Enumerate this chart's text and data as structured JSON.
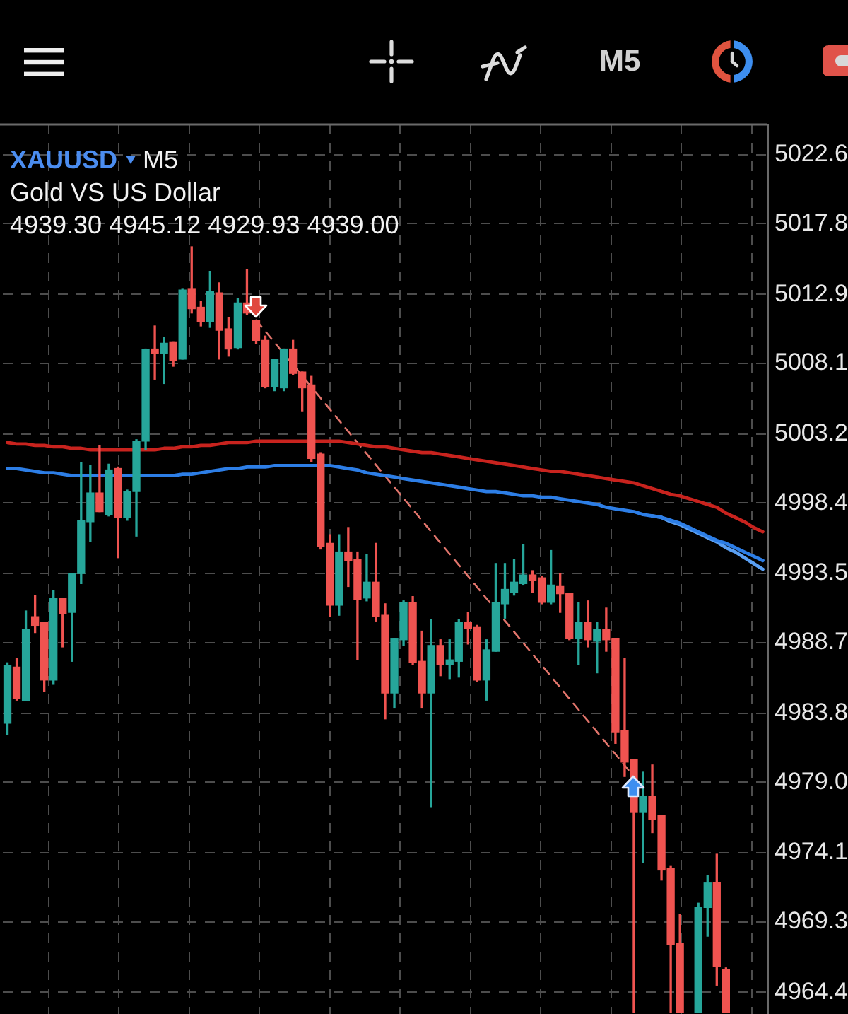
{
  "chart_data": {
    "type": "candlestick",
    "title": "XAUUSD",
    "subtitle": "Gold VS US Dollar",
    "annotations": [
      "M5",
      "4939.30 4945.12 4929.93 4939.00",
      "M5"
    ],
    "categories": [
      null,
      null,
      null,
      null,
      null,
      null,
      null,
      null,
      null,
      null,
      null,
      null,
      null,
      null,
      null,
      null,
      null,
      null,
      null,
      null,
      null,
      null,
      null,
      null,
      null,
      null,
      null,
      null,
      null,
      null,
      null,
      null,
      null,
      null,
      null,
      null,
      null,
      null,
      null,
      null,
      null,
      null,
      null,
      null,
      null,
      null,
      null,
      null,
      null,
      null,
      null,
      null,
      null,
      null,
      null,
      null,
      null,
      null,
      null,
      null,
      null,
      null,
      null,
      null,
      null,
      null,
      null,
      null,
      null,
      null,
      null,
      null,
      null,
      null,
      null,
      null,
      null,
      null,
      null,
      null,
      null,
      null,
      null
    ],
    "ohlc": [
      [
        4983.1,
        4987.3,
        4982.3,
        4987.1
      ],
      [
        4987.0,
        4987.6,
        4984.7,
        4984.8
      ],
      [
        4984.7,
        4990.9,
        4984.7,
        4989.6
      ],
      [
        4990.5,
        4992.0,
        4989.4,
        4989.9
      ],
      [
        4990.1,
        4990.1,
        4985.3,
        4986.1
      ],
      [
        4986.1,
        4992.3,
        4985.8,
        4991.8
      ],
      [
        4991.8,
        4991.8,
        4988.4,
        4990.7
      ],
      [
        4990.8,
        4993.5,
        4987.4,
        4993.5
      ],
      [
        4993.5,
        5001.2,
        4992.8,
        4997.2
      ],
      [
        4997.1,
        5001.0,
        4995.7,
        4999.1
      ],
      [
        4999.1,
        5002.4,
        4997.8,
        4997.8
      ],
      [
        4997.6,
        5001.1,
        4997.5,
        5000.7
      ],
      [
        5000.8,
        5000.9,
        4994.6,
        4997.4
      ],
      [
        4997.4,
        4999.3,
        4997.2,
        4999.2
      ],
      [
        4999.2,
        5002.8,
        4996.1,
        5002.7
      ],
      [
        5002.7,
        5009.1,
        5002.1,
        5009.1
      ],
      [
        5009.1,
        5010.7,
        5007.0,
        5008.8
      ],
      [
        5008.8,
        5009.9,
        5006.7,
        5009.5
      ],
      [
        5009.6,
        5009.6,
        5007.9,
        5008.3
      ],
      [
        5008.4,
        5013.3,
        5008.4,
        5013.2
      ],
      [
        5013.3,
        5016.2,
        5011.6,
        5011.9
      ],
      [
        5012.0,
        5012.4,
        5010.7,
        5011.0
      ],
      [
        5011.0,
        5014.5,
        5010.6,
        5013.1
      ],
      [
        5013.0,
        5013.7,
        5008.4,
        5010.4
      ],
      [
        5010.5,
        5011.3,
        5008.6,
        5009.1
      ],
      [
        5009.2,
        5012.6,
        5009.1,
        5012.3
      ],
      [
        5012.3,
        5014.6,
        5011.5,
        5011.6
      ],
      [
        5011.1,
        5011.1,
        5009.5,
        5009.7
      ],
      [
        5009.7,
        5010.0,
        5006.4,
        5006.5
      ],
      [
        5006.5,
        5008.4,
        5006.2,
        5008.4
      ],
      [
        5006.4,
        5009.1,
        5006.2,
        5009.1
      ],
      [
        5009.1,
        5009.7,
        5007.3,
        5007.4
      ],
      [
        5007.5,
        5007.5,
        5004.8,
        5006.4
      ],
      [
        5006.6,
        5007.2,
        5001.3,
        5001.5
      ],
      [
        5001.8,
        5001.9,
        4995.2,
        4995.4
      ],
      [
        4995.6,
        4996.2,
        4990.5,
        4991.3
      ],
      [
        4991.3,
        4996.2,
        4990.6,
        4995.0
      ],
      [
        4995.0,
        4996.7,
        4992.6,
        4994.4
      ],
      [
        4994.5,
        4995.0,
        4987.5,
        4991.7
      ],
      [
        4991.8,
        4994.8,
        4991.6,
        4992.9
      ],
      [
        4992.9,
        4995.6,
        4990.2,
        4990.5
      ],
      [
        4990.6,
        4991.4,
        4983.4,
        4985.2
      ],
      [
        4985.2,
        4989.0,
        4984.2,
        4989.0
      ],
      [
        4988.9,
        4991.6,
        4988.5,
        4991.5
      ],
      [
        4991.5,
        4991.9,
        4987.2,
        4987.3
      ],
      [
        4987.4,
        4989.5,
        4984.2,
        4985.2
      ],
      [
        4985.2,
        4990.3,
        4977.3,
        4988.5
      ],
      [
        4988.5,
        4988.9,
        4986.4,
        4987.2
      ],
      [
        4987.2,
        4988.9,
        4986.2,
        4987.5
      ],
      [
        4987.4,
        4990.3,
        4986.3,
        4990.1
      ],
      [
        4990.1,
        4990.8,
        4988.6,
        4989.7
      ],
      [
        4989.8,
        4989.9,
        4986.0,
        4986.1
      ],
      [
        4986.1,
        4988.9,
        4984.7,
        4988.2
      ],
      [
        4988.1,
        4994.2,
        4988.1,
        4991.5
      ],
      [
        4991.4,
        4994.2,
        4990.4,
        4992.4
      ],
      [
        4992.2,
        4994.5,
        4992.0,
        4992.9
      ],
      [
        4992.8,
        4995.5,
        4992.7,
        4993.4
      ],
      [
        4993.4,
        4993.7,
        4992.2,
        4993.0
      ],
      [
        4993.2,
        4993.3,
        4991.4,
        4991.5
      ],
      [
        4991.5,
        4995.1,
        4991.4,
        4992.7
      ],
      [
        4992.6,
        4993.5,
        4990.8,
        4992.1
      ],
      [
        4992.1,
        4992.1,
        4988.9,
        4989.0
      ],
      [
        4989.0,
        4991.5,
        4987.2,
        4990.1
      ],
      [
        4990.1,
        4991.6,
        4988.4,
        4988.9
      ],
      [
        4988.8,
        4990.1,
        4986.6,
        4989.6
      ],
      [
        4989.6,
        4991.1,
        4988.1,
        4988.9
      ],
      [
        4989.0,
        4989.0,
        4981.7,
        4982.5
      ],
      [
        4982.6,
        4987.6,
        4979.4,
        4980.4
      ],
      [
        4980.6,
        4980.6,
        4963.0,
        4976.9
      ],
      [
        4976.9,
        4979.7,
        4973.4,
        4978.0
      ],
      [
        4978.0,
        4980.2,
        4975.5,
        4976.4
      ],
      [
        4976.7,
        4976.7,
        4972.2,
        4972.9
      ],
      [
        4973.0,
        4973.2,
        4963.0,
        4967.7
      ],
      [
        4967.8,
        4969.8,
        4963.0,
        4963.0
      ],
      null,
      [
        4963.0,
        4970.6,
        4963.0,
        4970.3
      ],
      [
        4970.3,
        4972.5,
        4968.3,
        4972.0
      ],
      [
        4972.0,
        4974.0,
        4964.9,
        4966.2
      ],
      [
        4966.0,
        4966.1,
        4963.0,
        4963.0
      ],
      null,
      null,
      null,
      null
    ],
    "colors": [
      "#26a69a",
      "#ef5350",
      "#26a69a",
      "#ef5350",
      "#ef5350",
      "#26a69a",
      "#ef5350",
      "#26a69a",
      "#26a69a",
      "#26a69a",
      "#ef5350",
      "#26a69a",
      "#ef5350",
      "#26a69a",
      "#26a69a",
      "#26a69a",
      "#ef5350",
      "#26a69a",
      "#ef5350",
      "#26a69a",
      "#ef5350",
      "#ef5350",
      "#26a69a",
      "#ef5350",
      "#ef5350",
      "#26a69a",
      "#ef5350",
      "#ef5350",
      "#ef5350",
      "#26a69a",
      "#26a69a",
      "#ef5350",
      "#ef5350",
      "#ef5350",
      "#ef5350",
      "#ef5350",
      "#26a69a",
      "#ef5350",
      "#ef5350",
      "#26a69a",
      "#ef5350",
      "#ef5350",
      "#26a69a",
      "#26a69a",
      "#ef5350",
      "#ef5350",
      "#26a69a",
      "#ef5350",
      "#26a69a",
      "#26a69a",
      "#ef5350",
      "#ef5350",
      "#26a69a",
      "#26a69a",
      "#26a69a",
      "#26a69a",
      "#26a69a",
      "#ef5350",
      "#ef5350",
      "#26a69a",
      "#ef5350",
      "#ef5350",
      "#26a69a",
      "#ef5350",
      "#26a69a",
      "#ef5350",
      "#ef5350",
      "#ef5350",
      "#ef5350",
      "#26a69a",
      "#ef5350",
      "#ef5350",
      "#ef5350",
      "#ef5350",
      null,
      "#26a69a",
      "#26a69a",
      "#ef5350",
      "#ef5350",
      null,
      null,
      null,
      null
    ],
    "series": [
      {
        "type": "line",
        "color": "#c8231e",
        "values": [
          5002.6,
          5002.5,
          5002.5,
          5002.4,
          5002.4,
          5002.3,
          5002.3,
          5002.2,
          5002.2,
          5002.1,
          5002.1,
          5002.1,
          5002.1,
          5002.1,
          5002.1,
          5002.1,
          5002.1,
          5002.2,
          5002.2,
          5002.3,
          5002.3,
          5002.4,
          5002.4,
          5002.5,
          5002.6,
          5002.6,
          5002.6,
          5002.7,
          5002.7,
          5002.7,
          5002.7,
          5002.7,
          5002.7,
          5002.7,
          5002.7,
          5002.7,
          5002.7,
          5002.6,
          5002.5,
          5002.4,
          5002.3,
          5002.3,
          5002.2,
          5002.1,
          5002.0,
          5001.9,
          5001.9,
          5001.8,
          5001.7,
          5001.6,
          5001.5,
          5001.4,
          5001.3,
          5001.2,
          5001.1,
          5001.0,
          5000.9,
          5000.8,
          5000.7,
          5000.6,
          5000.6,
          5000.5,
          5000.4,
          5000.3,
          5000.2,
          5000.1,
          5000.0,
          4999.9,
          4999.8,
          4999.6,
          4999.4,
          4999.2,
          4999.0,
          4998.9,
          4998.7,
          4998.5,
          4998.3,
          4998.1,
          4997.7,
          4997.4,
          4997.1,
          4996.7,
          4996.4
        ]
      },
      {
        "type": "line",
        "color": "#2d7ee6",
        "values": [
          5000.8,
          5000.8,
          5000.7,
          5000.6,
          5000.5,
          5000.5,
          5000.4,
          5000.3,
          5000.3,
          5000.3,
          5000.3,
          5000.3,
          5000.3,
          5000.3,
          5000.3,
          5000.3,
          5000.3,
          5000.3,
          5000.3,
          5000.4,
          5000.4,
          5000.5,
          5000.6,
          5000.7,
          5000.8,
          5000.8,
          5000.9,
          5000.9,
          5000.9,
          5001.0,
          5001.0,
          5001.0,
          5001.0,
          5001.0,
          5001.0,
          5001.0,
          5000.9,
          5000.8,
          5000.7,
          5000.5,
          5000.4,
          5000.3,
          5000.2,
          5000.1,
          5000.0,
          4999.9,
          4999.8,
          4999.7,
          4999.6,
          4999.5,
          4999.4,
          4999.3,
          4999.2,
          4999.2,
          4999.1,
          4999.0,
          4998.9,
          4998.9,
          4998.8,
          4998.8,
          4998.7,
          4998.6,
          4998.5,
          4998.4,
          4998.3,
          4998.1,
          4998.0,
          4997.9,
          4997.8,
          4997.6,
          4997.5,
          4997.4,
          4997.2,
          4997.0,
          4996.7,
          4996.4,
          4996.1,
          4995.8,
          4995.6,
          4995.3,
          4995.0,
          4994.7,
          4994.4
        ]
      },
      {
        "type": "line",
        "color": "#5a9ff2",
        "values": [
          null,
          null,
          null,
          null,
          null,
          null,
          null,
          null,
          null,
          null,
          null,
          null,
          null,
          null,
          null,
          null,
          null,
          null,
          null,
          null,
          null,
          null,
          null,
          null,
          null,
          null,
          null,
          null,
          null,
          null,
          null,
          null,
          null,
          null,
          null,
          null,
          null,
          null,
          null,
          null,
          null,
          null,
          null,
          null,
          null,
          null,
          null,
          null,
          null,
          null,
          null,
          null,
          null,
          null,
          null,
          null,
          null,
          null,
          null,
          null,
          null,
          null,
          null,
          null,
          null,
          null,
          null,
          null,
          null,
          null,
          4997.5,
          4997.4,
          4997.1,
          4996.9,
          4996.6,
          4996.3,
          4996.0,
          4995.7,
          4995.3,
          4995.0,
          4994.6,
          4994.2,
          4993.8
        ]
      },
      {
        "type": "line",
        "color": "#e2756c",
        "line_style": "dashed",
        "values": [
          null,
          null,
          null,
          null,
          null,
          null,
          null,
          null,
          null,
          null,
          null,
          null,
          null,
          null,
          null,
          null,
          null,
          null,
          null,
          null,
          null,
          null,
          null,
          null,
          null,
          null,
          null,
          5011.1,
          null,
          null,
          null,
          null,
          null,
          null,
          null,
          null,
          null,
          null,
          null,
          null,
          null,
          null,
          null,
          null,
          null,
          null,
          null,
          null,
          null,
          null,
          null,
          null,
          null,
          null,
          null,
          null,
          null,
          null,
          null,
          null,
          null,
          null,
          null,
          null,
          null,
          null,
          null,
          null,
          4979.4,
          null,
          null,
          null,
          null,
          null,
          null,
          null,
          null,
          null,
          null,
          null,
          null,
          null,
          null
        ]
      }
    ],
    "ylim": [
      4962.9,
      5024.7
    ],
    "yticks": [
      4964.4,
      4969.3,
      4974.1,
      {
        "value": 4979.0,
        "label": "4979.0"
      },
      4983.8,
      4988.7,
      4993.5,
      4998.4,
      5003.2,
      5008.1,
      5012.9,
      5017.8,
      5022.6
    ],
    "grid": true,
    "tick_labels": "y"
  }
}
